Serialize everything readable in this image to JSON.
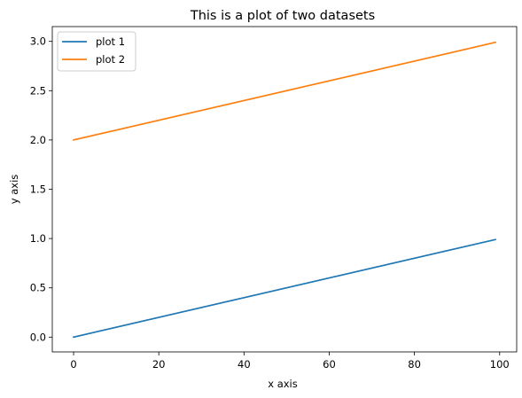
{
  "chart_data": {
    "type": "line",
    "title": "This is a plot of two datasets",
    "xlabel": "x axis",
    "ylabel": "y axis",
    "xlim": [
      -5,
      104
    ],
    "ylim": [
      -0.15,
      3.15
    ],
    "xticks": [
      0,
      20,
      40,
      60,
      80,
      100
    ],
    "xtick_labels": [
      "0",
      "20",
      "40",
      "60",
      "80",
      "100"
    ],
    "yticks": [
      0.0,
      0.5,
      1.0,
      1.5,
      2.0,
      2.5,
      3.0
    ],
    "ytick_labels": [
      "0.0",
      "0.5",
      "1.0",
      "1.5",
      "2.0",
      "2.5",
      "3.0"
    ],
    "grid": false,
    "legend_position": "upper-left",
    "series": [
      {
        "name": "plot 1",
        "color": "#1f77b4",
        "x": [
          0,
          99
        ],
        "y": [
          0.0,
          0.99
        ]
      },
      {
        "name": "plot 2",
        "color": "#ff7f0e",
        "x": [
          0,
          99
        ],
        "y": [
          2.0,
          2.99
        ]
      }
    ]
  }
}
